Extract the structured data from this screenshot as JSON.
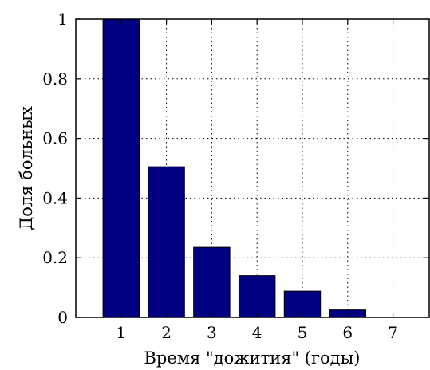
{
  "chart_data": {
    "type": "bar",
    "categories": [
      "1",
      "2",
      "3",
      "4",
      "5",
      "6",
      "7"
    ],
    "values": [
      1.0,
      0.505,
      0.235,
      0.14,
      0.088,
      0.025,
      0.0
    ],
    "title": "",
    "xlabel": "Время \"дожития\" (годы)",
    "ylabel": "Доля больных",
    "ylim": [
      0,
      1
    ],
    "xlim": [
      0,
      7.8
    ],
    "yticks": [
      "0",
      "0.2",
      "0.4",
      "0.6",
      "0.8",
      "1"
    ],
    "grid": true,
    "bar_color": "#000080"
  }
}
